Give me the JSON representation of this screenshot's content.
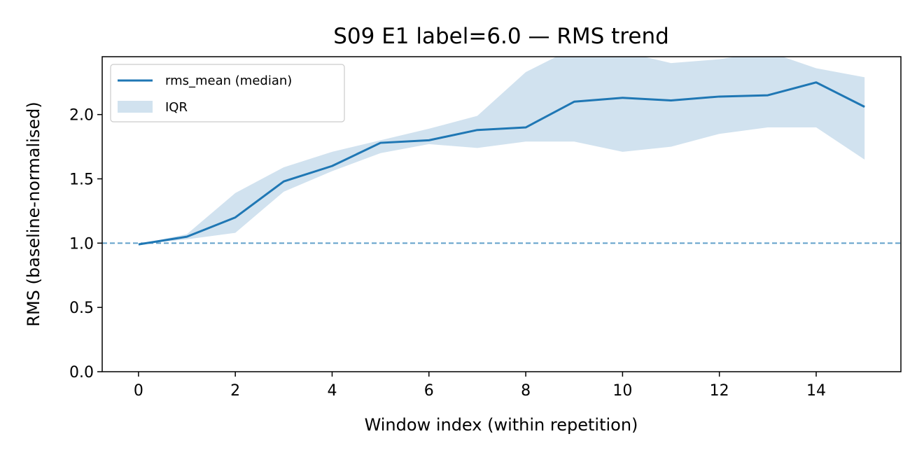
{
  "chart_data": {
    "type": "line",
    "title": "S09 E1 label=6.0 — RMS trend",
    "xlabel": "Window index (within repetition)",
    "ylabel": "RMS (baseline-normalised)",
    "xlim": [
      -0.75,
      15.75
    ],
    "ylim": [
      0.0,
      2.45
    ],
    "x_ticks": [
      0,
      2,
      4,
      6,
      8,
      10,
      12,
      14
    ],
    "y_ticks": [
      0.0,
      0.5,
      1.0,
      1.5,
      2.0
    ],
    "x_tick_labels": [
      "0",
      "2",
      "4",
      "6",
      "8",
      "10",
      "12",
      "14"
    ],
    "y_tick_labels": [
      "0.0",
      "0.5",
      "1.0",
      "1.5",
      "2.0"
    ],
    "x": [
      0,
      1,
      2,
      3,
      4,
      5,
      6,
      7,
      8,
      9,
      10,
      11,
      12,
      13,
      14,
      15
    ],
    "series": [
      {
        "name": "rms_mean (median)",
        "type": "line",
        "color": "#1f77b4",
        "values": [
          0.99,
          1.05,
          1.2,
          1.48,
          1.6,
          1.78,
          1.8,
          1.88,
          1.9,
          2.1,
          2.13,
          2.11,
          2.14,
          2.15,
          2.25,
          2.06
        ]
      },
      {
        "name": "IQR",
        "type": "band",
        "color": "#c6dbeb",
        "lower": [
          0.99,
          1.03,
          1.08,
          1.4,
          1.56,
          1.7,
          1.77,
          1.74,
          1.79,
          1.79,
          1.71,
          1.75,
          1.85,
          1.9,
          1.9,
          1.65
        ],
        "upper": [
          0.99,
          1.07,
          1.39,
          1.59,
          1.71,
          1.8,
          1.89,
          1.99,
          2.33,
          2.52,
          2.49,
          2.4,
          2.43,
          2.49,
          2.36,
          2.29
        ]
      }
    ],
    "reference_line": {
      "y": 1.0,
      "style": "dashed",
      "color": "#1f77b4"
    },
    "legend": {
      "position": "top-left",
      "entries": [
        "rms_mean (median)",
        "IQR"
      ]
    },
    "grid": false
  }
}
